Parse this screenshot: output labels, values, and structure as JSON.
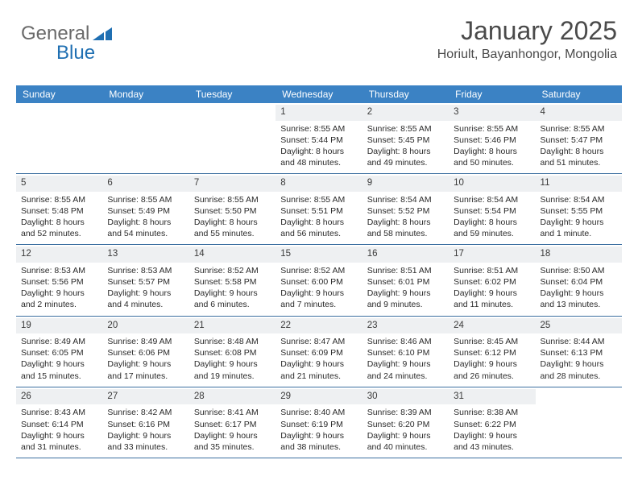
{
  "logo": {
    "text1": "General",
    "text2": "Blue"
  },
  "header": {
    "title": "January 2025",
    "location": "Horiult, Bayanhongor, Mongolia"
  },
  "colors": {
    "header_bg": "#3b82c4",
    "header_text": "#ffffff",
    "week_border": "#3b6fa0",
    "daynum_bg": "#eef0f2",
    "logo_blue": "#1f6fb2",
    "logo_gray": "#6a6a6a",
    "title_color": "#4a4a4a"
  },
  "daysOfWeek": [
    "Sunday",
    "Monday",
    "Tuesday",
    "Wednesday",
    "Thursday",
    "Friday",
    "Saturday"
  ],
  "labels": {
    "sunrise": "Sunrise:",
    "sunset": "Sunset:",
    "daylight": "Daylight:"
  },
  "weeks": [
    [
      {
        "empty": true
      },
      {
        "empty": true
      },
      {
        "empty": true
      },
      {
        "day": "1",
        "sunrise": "8:55 AM",
        "sunset": "5:44 PM",
        "daylight": "8 hours and 48 minutes."
      },
      {
        "day": "2",
        "sunrise": "8:55 AM",
        "sunset": "5:45 PM",
        "daylight": "8 hours and 49 minutes."
      },
      {
        "day": "3",
        "sunrise": "8:55 AM",
        "sunset": "5:46 PM",
        "daylight": "8 hours and 50 minutes."
      },
      {
        "day": "4",
        "sunrise": "8:55 AM",
        "sunset": "5:47 PM",
        "daylight": "8 hours and 51 minutes."
      }
    ],
    [
      {
        "day": "5",
        "sunrise": "8:55 AM",
        "sunset": "5:48 PM",
        "daylight": "8 hours and 52 minutes."
      },
      {
        "day": "6",
        "sunrise": "8:55 AM",
        "sunset": "5:49 PM",
        "daylight": "8 hours and 54 minutes."
      },
      {
        "day": "7",
        "sunrise": "8:55 AM",
        "sunset": "5:50 PM",
        "daylight": "8 hours and 55 minutes."
      },
      {
        "day": "8",
        "sunrise": "8:55 AM",
        "sunset": "5:51 PM",
        "daylight": "8 hours and 56 minutes."
      },
      {
        "day": "9",
        "sunrise": "8:54 AM",
        "sunset": "5:52 PM",
        "daylight": "8 hours and 58 minutes."
      },
      {
        "day": "10",
        "sunrise": "8:54 AM",
        "sunset": "5:54 PM",
        "daylight": "8 hours and 59 minutes."
      },
      {
        "day": "11",
        "sunrise": "8:54 AM",
        "sunset": "5:55 PM",
        "daylight": "9 hours and 1 minute."
      }
    ],
    [
      {
        "day": "12",
        "sunrise": "8:53 AM",
        "sunset": "5:56 PM",
        "daylight": "9 hours and 2 minutes."
      },
      {
        "day": "13",
        "sunrise": "8:53 AM",
        "sunset": "5:57 PM",
        "daylight": "9 hours and 4 minutes."
      },
      {
        "day": "14",
        "sunrise": "8:52 AM",
        "sunset": "5:58 PM",
        "daylight": "9 hours and 6 minutes."
      },
      {
        "day": "15",
        "sunrise": "8:52 AM",
        "sunset": "6:00 PM",
        "daylight": "9 hours and 7 minutes."
      },
      {
        "day": "16",
        "sunrise": "8:51 AM",
        "sunset": "6:01 PM",
        "daylight": "9 hours and 9 minutes."
      },
      {
        "day": "17",
        "sunrise": "8:51 AM",
        "sunset": "6:02 PM",
        "daylight": "9 hours and 11 minutes."
      },
      {
        "day": "18",
        "sunrise": "8:50 AM",
        "sunset": "6:04 PM",
        "daylight": "9 hours and 13 minutes."
      }
    ],
    [
      {
        "day": "19",
        "sunrise": "8:49 AM",
        "sunset": "6:05 PM",
        "daylight": "9 hours and 15 minutes."
      },
      {
        "day": "20",
        "sunrise": "8:49 AM",
        "sunset": "6:06 PM",
        "daylight": "9 hours and 17 minutes."
      },
      {
        "day": "21",
        "sunrise": "8:48 AM",
        "sunset": "6:08 PM",
        "daylight": "9 hours and 19 minutes."
      },
      {
        "day": "22",
        "sunrise": "8:47 AM",
        "sunset": "6:09 PM",
        "daylight": "9 hours and 21 minutes."
      },
      {
        "day": "23",
        "sunrise": "8:46 AM",
        "sunset": "6:10 PM",
        "daylight": "9 hours and 24 minutes."
      },
      {
        "day": "24",
        "sunrise": "8:45 AM",
        "sunset": "6:12 PM",
        "daylight": "9 hours and 26 minutes."
      },
      {
        "day": "25",
        "sunrise": "8:44 AM",
        "sunset": "6:13 PM",
        "daylight": "9 hours and 28 minutes."
      }
    ],
    [
      {
        "day": "26",
        "sunrise": "8:43 AM",
        "sunset": "6:14 PM",
        "daylight": "9 hours and 31 minutes."
      },
      {
        "day": "27",
        "sunrise": "8:42 AM",
        "sunset": "6:16 PM",
        "daylight": "9 hours and 33 minutes."
      },
      {
        "day": "28",
        "sunrise": "8:41 AM",
        "sunset": "6:17 PM",
        "daylight": "9 hours and 35 minutes."
      },
      {
        "day": "29",
        "sunrise": "8:40 AM",
        "sunset": "6:19 PM",
        "daylight": "9 hours and 38 minutes."
      },
      {
        "day": "30",
        "sunrise": "8:39 AM",
        "sunset": "6:20 PM",
        "daylight": "9 hours and 40 minutes."
      },
      {
        "day": "31",
        "sunrise": "8:38 AM",
        "sunset": "6:22 PM",
        "daylight": "9 hours and 43 minutes."
      },
      {
        "empty": true
      }
    ]
  ]
}
